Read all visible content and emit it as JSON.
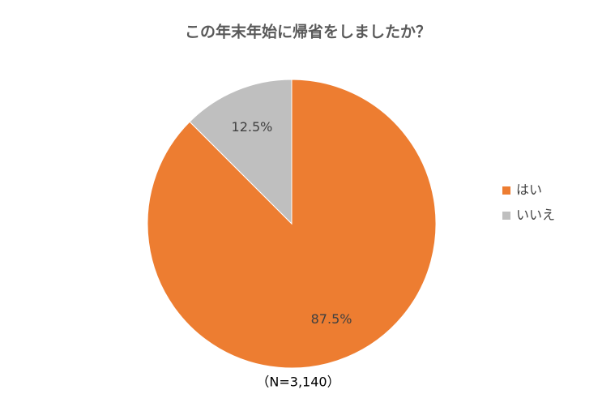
{
  "chart_data": {
    "type": "pie",
    "title": "この年末年始に帰省をしましたか？",
    "categories": [
      "はい",
      "いいえ"
    ],
    "values": [
      87.5,
      12.5
    ],
    "value_labels": [
      "87.5%",
      "12.5%"
    ],
    "colors": [
      "#ed7d31",
      "#bfbfbf"
    ],
    "annotation": "（N=3,140）",
    "legend": "right"
  }
}
